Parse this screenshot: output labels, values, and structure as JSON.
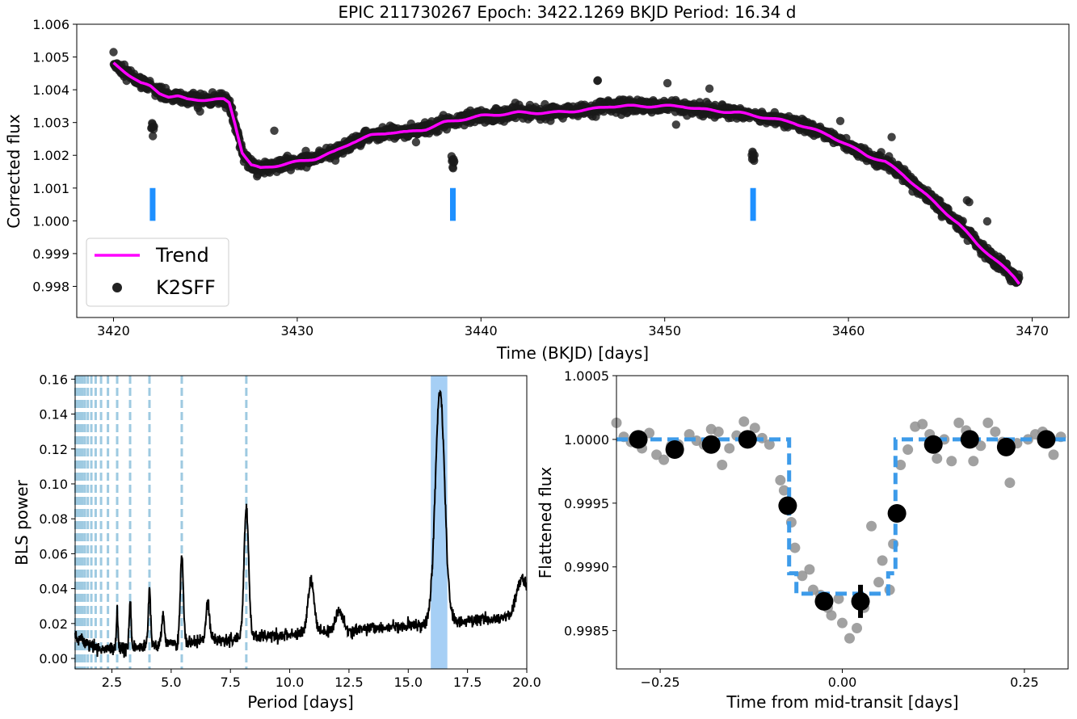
{
  "figure": {
    "title": "EPIC 211730267    Epoch: 3422.1269 BKJD   Period: 16.34 d"
  },
  "chart_data": [
    {
      "type": "scatter",
      "name": "top-lightcurve",
      "xlabel": "Time (BKJD) [days]",
      "ylabel": "Corrected flux",
      "xlim": [
        3418,
        3472
      ],
      "ylim": [
        0.99705,
        1.006
      ],
      "xticks": [
        3420,
        3430,
        3440,
        3450,
        3460,
        3470
      ],
      "yticks": [
        0.998,
        0.999,
        1.0,
        1.001,
        1.002,
        1.003,
        1.004,
        1.005,
        1.006
      ],
      "ytick_labels": [
        "0.998",
        "0.999",
        "1.000",
        "1.001",
        "1.002",
        "1.003",
        "1.004",
        "1.005",
        "1.006"
      ],
      "legend": {
        "position": "lower-left",
        "entries": [
          "Trend",
          "K2SFF"
        ]
      },
      "colors": {
        "trend": "#ff00ff",
        "points": "#000000",
        "transit_marker": "#1e90ff"
      },
      "trend": {
        "x": [
          3420.0,
          3420.5,
          3421.0,
          3421.5,
          3422.0,
          3422.5,
          3423.0,
          3423.5,
          3424.0,
          3424.5,
          3425.0,
          3425.5,
          3426.0,
          3426.3,
          3426.6,
          3427.0,
          3427.5,
          3428.0,
          3429.0,
          3430.0,
          3431.0,
          3432.0,
          3433.0,
          3434.0,
          3435.0,
          3436.0,
          3437.0,
          3438.0,
          3439.0,
          3440.0,
          3442.0,
          3444.0,
          3446.0,
          3447.0,
          3448.0,
          3450.0,
          3451.0,
          3452.0,
          3454.0,
          3455.0,
          3456.0,
          3457.0,
          3458.0,
          3459.0,
          3460.0,
          3461.0,
          3462.0,
          3463.0,
          3464.0,
          3465.0,
          3466.0,
          3467.0,
          3468.0,
          3469.0,
          3469.3
        ],
        "y": [
          1.0048,
          1.0046,
          1.0044,
          1.0042,
          1.0041,
          1.0039,
          1.0038,
          1.0038,
          1.0037,
          1.0037,
          1.0037,
          1.0037,
          1.0037,
          1.0036,
          1.003,
          1.0021,
          1.0017,
          1.0016,
          1.0017,
          1.0018,
          1.0019,
          1.0021,
          1.0024,
          1.0026,
          1.0027,
          1.0027,
          1.0028,
          1.003,
          1.0031,
          1.0032,
          1.0033,
          1.0033,
          1.0034,
          1.0035,
          1.0035,
          1.0035,
          1.0035,
          1.0034,
          1.0033,
          1.0032,
          1.0031,
          1.003,
          1.0028,
          1.0026,
          1.0023,
          1.002,
          1.0018,
          1.0014,
          1.0009,
          1.0004,
          0.9999,
          0.9993,
          0.9988,
          0.9983,
          0.9981
        ]
      },
      "points_note": "K2SFF long-cadence flux scattered about the trend",
      "transit_x": [
        3422.13,
        3438.47,
        3454.81
      ]
    },
    {
      "type": "line",
      "name": "bls-periodogram",
      "xlabel": "Period [days]",
      "ylabel": "BLS power",
      "xlim": [
        0.95,
        20.0
      ],
      "ylim": [
        -0.006,
        0.162
      ],
      "xticks": [
        2.5,
        5.0,
        7.5,
        10.0,
        12.5,
        15.0,
        17.5,
        20.0
      ],
      "xtick_labels": [
        "2.5",
        "5.0",
        "7.5",
        "10.0",
        "12.5",
        "15.0",
        "17.5",
        "20.0"
      ],
      "yticks": [
        0.0,
        0.02,
        0.04,
        0.06,
        0.08,
        0.1,
        0.12,
        0.14,
        0.16
      ],
      "ytick_labels": [
        "0.00",
        "0.02",
        "0.04",
        "0.06",
        "0.08",
        "0.10",
        "0.12",
        "0.14",
        "0.16"
      ],
      "best_period": 16.34,
      "highlight_band": [
        15.95,
        16.65
      ],
      "alias_lines": [
        8.17,
        5.447,
        4.085,
        3.268,
        2.723,
        2.334,
        2.043,
        1.816,
        1.634,
        1.485,
        1.362,
        1.257,
        1.167,
        1.089,
        1.021
      ],
      "peaks": [
        {
          "x": 16.34,
          "y": 0.153
        },
        {
          "x": 8.17,
          "y": 0.085
        },
        {
          "x": 5.447,
          "y": 0.06
        },
        {
          "x": 4.085,
          "y": 0.042
        },
        {
          "x": 10.9,
          "y": 0.04
        },
        {
          "x": 3.268,
          "y": 0.036
        },
        {
          "x": 2.723,
          "y": 0.032
        },
        {
          "x": 6.54,
          "y": 0.031
        },
        {
          "x": 4.66,
          "y": 0.028
        },
        {
          "x": 19.8,
          "y": 0.042
        },
        {
          "x": 12.1,
          "y": 0.022
        }
      ],
      "colors": {
        "line": "#000000",
        "alias": "#9ecae1",
        "band": "#a6cff5"
      }
    },
    {
      "type": "scatter",
      "name": "folded-transit",
      "xlabel": "Time from mid-transit [days]",
      "ylabel": "Flattened flux",
      "xlim": [
        -0.31,
        0.31
      ],
      "ylim": [
        0.9982,
        1.0005
      ],
      "xticks": [
        -0.25,
        0.0,
        0.25
      ],
      "xtick_labels": [
        "−0.25",
        "0.00",
        "0.25"
      ],
      "yticks": [
        0.9985,
        0.999,
        0.9995,
        1.0,
        1.0005
      ],
      "ytick_labels": [
        "0.9985",
        "0.9990",
        "0.9995",
        "1.0000",
        "1.0005"
      ],
      "model": {
        "x": [
          -0.31,
          -0.073,
          -0.073,
          -0.063,
          -0.063,
          0.063,
          0.063,
          0.073,
          0.073,
          0.31
        ],
        "y": [
          1.0,
          1.0,
          0.99895,
          0.99895,
          0.99879,
          0.99879,
          0.99895,
          0.99895,
          1.0,
          1.0
        ]
      },
      "binned": {
        "x": [
          -0.28,
          -0.23,
          -0.18,
          -0.13,
          -0.075,
          -0.025,
          0.025,
          0.075,
          0.125,
          0.175,
          0.225,
          0.28
        ],
        "y": [
          1.0,
          0.99992,
          0.99996,
          1.0,
          0.99948,
          0.99873,
          0.99873,
          0.99942,
          0.99996,
          1.0,
          0.99994,
          1.0
        ],
        "yerr": [
          2e-05,
          2e-05,
          5e-05,
          3e-05,
          5e-05,
          3e-05,
          0.00013,
          5e-05,
          3e-05,
          6e-05,
          7e-05,
          3e-05
        ]
      },
      "raw": {
        "x": [
          -0.31,
          -0.3,
          -0.29,
          -0.275,
          -0.265,
          -0.255,
          -0.245,
          -0.235,
          -0.225,
          -0.21,
          -0.2,
          -0.19,
          -0.18,
          -0.17,
          -0.165,
          -0.155,
          -0.145,
          -0.135,
          -0.12,
          -0.11,
          -0.1,
          -0.085,
          -0.08,
          -0.07,
          -0.065,
          -0.055,
          -0.045,
          -0.04,
          -0.03,
          -0.02,
          -0.015,
          -0.005,
          0.0,
          0.01,
          0.02,
          0.03,
          0.04,
          0.05,
          0.055,
          0.065,
          0.07,
          0.08,
          0.09,
          0.1,
          0.11,
          0.12,
          0.13,
          0.14,
          0.15,
          0.16,
          0.17,
          0.18,
          0.19,
          0.2,
          0.21,
          0.22,
          0.23,
          0.24,
          0.255,
          0.265,
          0.275,
          0.29,
          0.3
        ],
        "y": [
          1.00013,
          1.00002,
          0.99998,
          0.99993,
          1.00005,
          0.99988,
          0.99984,
          0.99995,
          0.99996,
          1.00004,
          0.99999,
          0.99996,
          1.00008,
          1.00006,
          0.9998,
          0.99993,
          1.00003,
          1.00014,
          1.00009,
          1.00001,
          0.99996,
          0.99968,
          0.9996,
          0.99935,
          0.99915,
          0.99893,
          0.99898,
          0.99882,
          0.99878,
          0.99868,
          0.99862,
          0.99875,
          0.99856,
          0.99844,
          0.99852,
          0.99868,
          0.99932,
          0.99888,
          0.99905,
          0.99882,
          0.99918,
          0.9998,
          0.99992,
          1.0001,
          1.00012,
          1.00004,
          0.99985,
          1.0,
          0.99983,
          1.00013,
          1.00007,
          0.99983,
          0.99995,
          1.00013,
          1.00006,
          0.99998,
          0.99966,
          0.99997,
          1.0,
          1.00004,
          1.00006,
          0.99988,
          1.00002
        ]
      },
      "colors": {
        "model": "#3d9be9",
        "binned": "#000000",
        "raw": "#909090"
      }
    }
  ]
}
